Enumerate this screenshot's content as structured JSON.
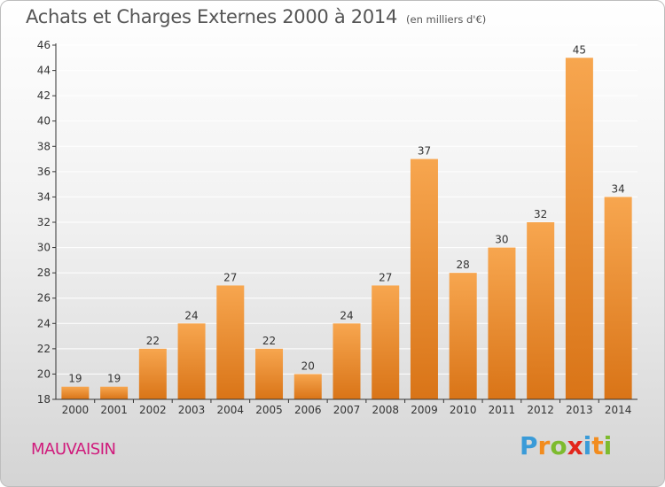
{
  "title": "Achats et Charges Externes 2000 à 2014",
  "subtitle": "(en milliers d'€)",
  "place_label": "MAUVAISIN",
  "brand": {
    "text": "Proxiti",
    "letters": [
      {
        "ch": "P",
        "color": "#3a9bd8"
      },
      {
        "ch": "r",
        "color": "#f28c1e"
      },
      {
        "ch": "o",
        "color": "#7dbb2e"
      },
      {
        "ch": "x",
        "color": "#e2261c"
      },
      {
        "ch": "i",
        "color": "#3a9bd8"
      },
      {
        "ch": "t",
        "color": "#f28c1e"
      },
      {
        "ch": "i",
        "color": "#7dbb2e"
      }
    ]
  },
  "colors": {
    "bar_top": "#f7a64f",
    "bar_bottom": "#d97417",
    "axis": "#333333",
    "grid": "#ffffff"
  },
  "chart_data": {
    "type": "bar",
    "categories": [
      "2000",
      "2001",
      "2002",
      "2003",
      "2004",
      "2005",
      "2006",
      "2007",
      "2008",
      "2009",
      "2010",
      "2011",
      "2012",
      "2013",
      "2014"
    ],
    "values": [
      19,
      19,
      22,
      24,
      27,
      22,
      20,
      24,
      27,
      37,
      28,
      30,
      32,
      45,
      34
    ],
    "ylim": [
      18,
      46
    ],
    "yticks": [
      18,
      20,
      22,
      24,
      26,
      28,
      30,
      32,
      34,
      36,
      38,
      40,
      42,
      44,
      46
    ],
    "grid": true,
    "data_labels": true
  }
}
